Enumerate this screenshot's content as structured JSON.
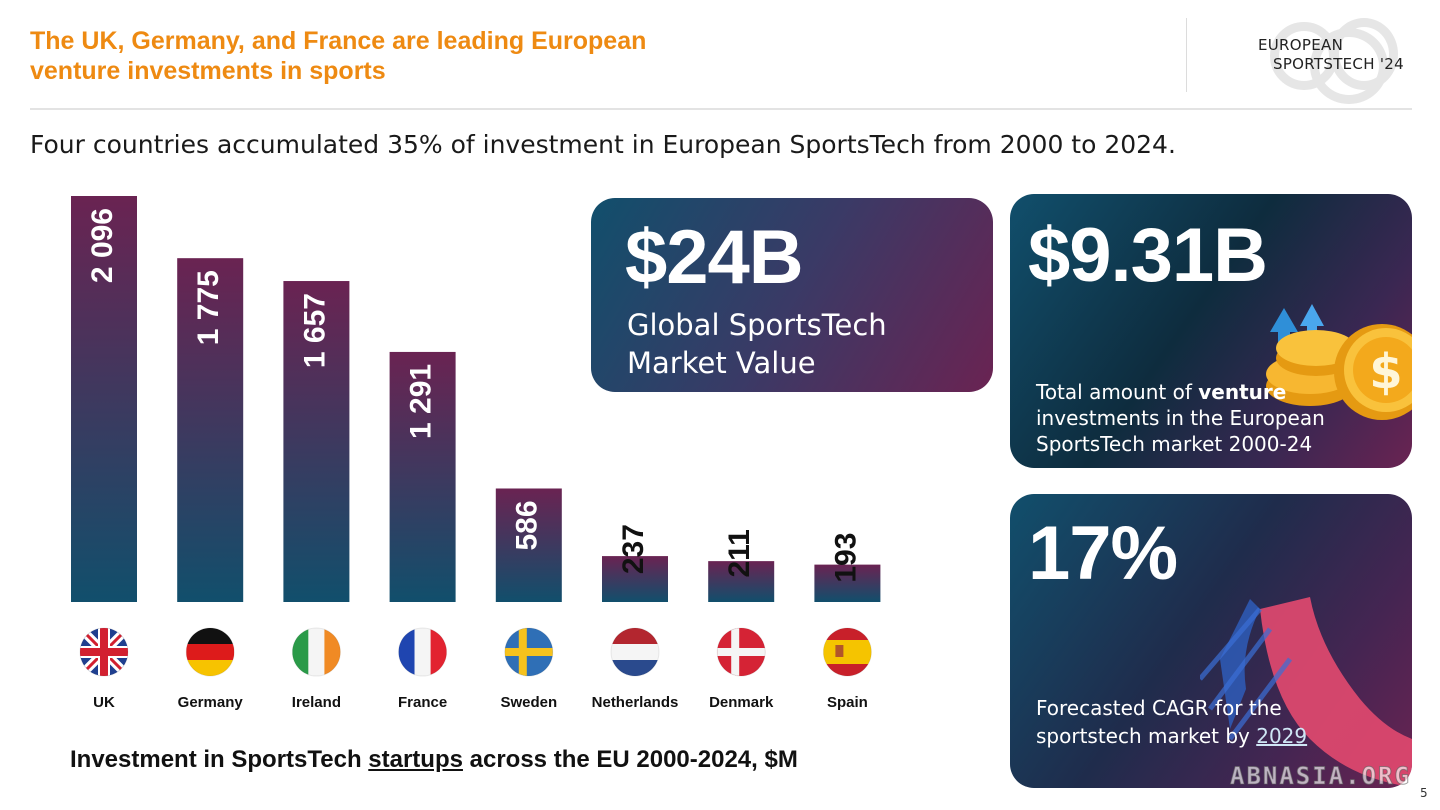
{
  "header": {
    "title_line1": "The UK, Germany, and France are leading European",
    "title_line2": "venture investments in sports",
    "logo_line1": "EUROPEAN",
    "logo_line2": "SPORTSTECH '24"
  },
  "subtitle": "Four countries accumulated 35% of investment in European SportsTech from 2000 to 2024.",
  "chart_data": {
    "type": "bar",
    "categories": [
      "UK",
      "Germany",
      "Ireland",
      "France",
      "Sweden",
      "Netherlands",
      "Denmark",
      "Spain"
    ],
    "values": [
      2096,
      1775,
      1657,
      1291,
      586,
      237,
      211,
      193
    ],
    "value_labels": [
      "2 096",
      "1 775",
      "1 657",
      "1 291",
      "586",
      "237",
      "211",
      "193"
    ],
    "title": "Investment in SportsTech startups across the EU 2000-2024, $M",
    "ylim": [
      0,
      2096
    ],
    "grid": false,
    "colors": {
      "bar_top": "#6a2352",
      "bar_bottom": "#114f6c"
    }
  },
  "caption": {
    "before": "Investment in SportsTech ",
    "underlined": "startups",
    "after": " across the EU 2000-2024, $M"
  },
  "cards": {
    "market_value": {
      "value": "$24B",
      "line1": "Global SportsTech",
      "line2": "Market Value"
    },
    "venture_total": {
      "value": "$9.31B",
      "text_before": "Total amount of ",
      "text_bold": "venture",
      "text_after": " investments in the European SportsTech market 2000-24"
    },
    "cagr": {
      "value": "17%",
      "text_before": "Forecasted CAGR for the sportstech market by ",
      "text_underlined": "2029"
    }
  },
  "watermark": "ABNASIA.ORG",
  "page_number": "5",
  "icons": [
    "flag-uk-icon",
    "flag-germany-icon",
    "flag-ireland-icon",
    "flag-france-icon",
    "flag-sweden-icon",
    "flag-netherlands-icon",
    "flag-denmark-icon",
    "flag-spain-icon",
    "coin-arrows-icon",
    "swoosh-shape-icon"
  ]
}
